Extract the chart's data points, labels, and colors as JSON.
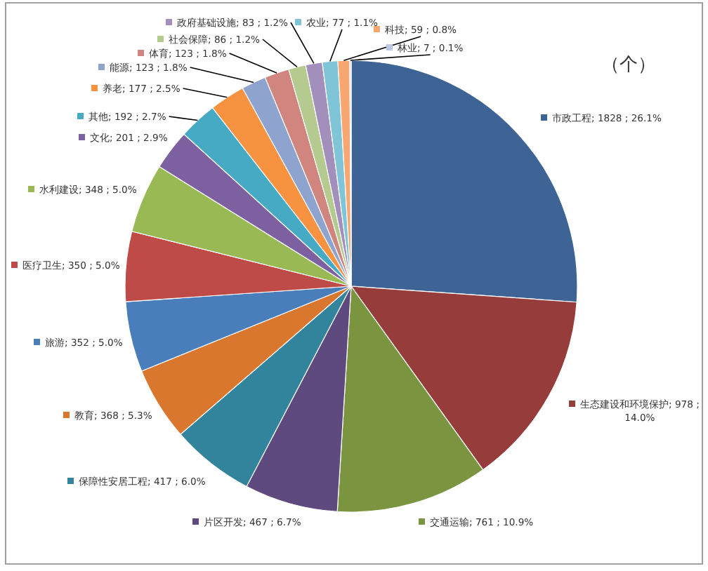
{
  "chart_data": {
    "type": "pie",
    "annotations": [
      "（个）"
    ],
    "categories": [
      "市政工程",
      "生态建设和环境保护",
      "交通运输",
      "片区开发",
      "保障性安居工程",
      "教育",
      "旅游",
      "医疗卫生",
      "水利建设",
      "文化",
      "其他",
      "养老",
      "能源",
      "体育",
      "社会保障",
      "政府基础设施",
      "农业",
      "科技",
      "林业"
    ],
    "values": [
      1828,
      978,
      761,
      467,
      417,
      368,
      352,
      350,
      348,
      201,
      192,
      177,
      123,
      123,
      86,
      83,
      77,
      59,
      7
    ],
    "value_labels": [
      "1828 ; 26.1%",
      "978 ; 14.0%",
      "761 ; 10.9%",
      "467 ; 6.7%",
      "417 ; 6.0%",
      "368 ; 5.3%",
      "352 ; 5.0%",
      "350 ; 5.0%",
      "348 ; 5.0%",
      "201 ; 2.9%",
      "192 ; 2.7%",
      "177 ; 2.5%",
      "123 ; 1.8%",
      "123 ; 1.8%",
      "86 ; 1.2%",
      "83 ; 1.2%",
      "77 ; 1.1%",
      "59 ; 0.8%",
      "7 ; 0.1%"
    ],
    "colors": [
      "#3e6496",
      "#963c3a",
      "#7a9440",
      "#5f4a80",
      "#31849b",
      "#d9772e",
      "#4a7ebb",
      "#be4b48",
      "#98b954",
      "#7d60a0",
      "#46aac5",
      "#f69240",
      "#8fa3cf",
      "#d0857f",
      "#b5ca8e",
      "#a28fbb",
      "#7fc4d7",
      "#f8a770",
      "#bcc8e0"
    ],
    "legend": "right"
  }
}
